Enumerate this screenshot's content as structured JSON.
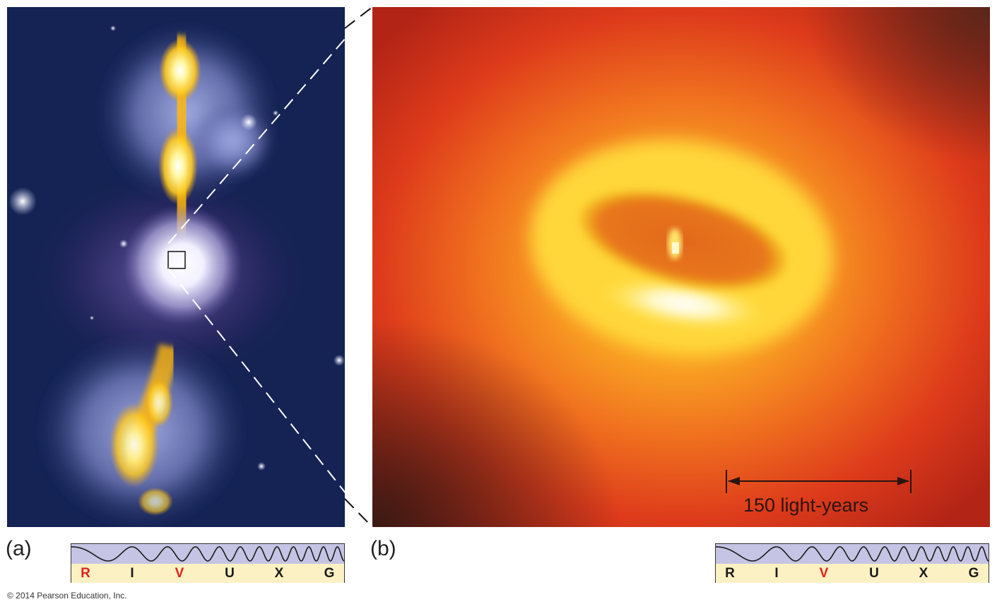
{
  "panels": {
    "a": {
      "label": "(a)"
    },
    "b": {
      "label": "(b)"
    }
  },
  "scale_bar": {
    "label": "150 light-years"
  },
  "spectrum_bands": [
    "R",
    "I",
    "V",
    "U",
    "X",
    "G"
  ],
  "spectrum_a_active": [
    "R",
    "V"
  ],
  "spectrum_b_active": [
    "V"
  ],
  "copyright": "© 2014 Pearson Education, Inc.",
  "colors": {
    "band_active": "#e32119",
    "band_inactive": "#1a1a1a",
    "wave_background": "#c6c4e4",
    "band_background": "#fbf1c3"
  }
}
